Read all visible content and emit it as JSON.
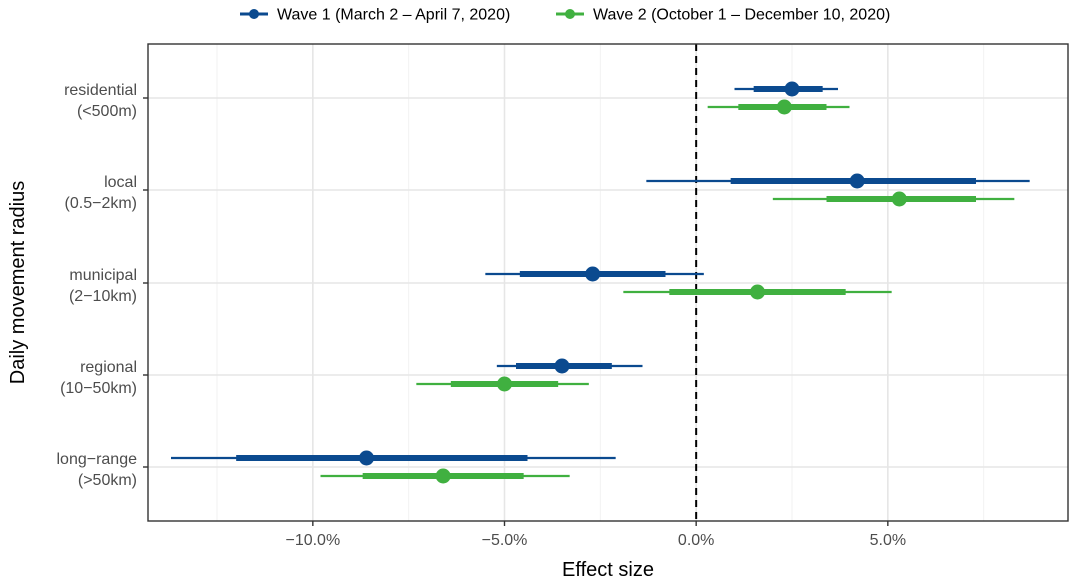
{
  "chart_data": {
    "type": "forest",
    "xlabel": "Effect size",
    "ylabel": "Daily movement radius",
    "xlim": [
      -14.3,
      9.7
    ],
    "x_ticks": [
      -10,
      -5,
      0,
      5
    ],
    "x_tick_labels": [
      "−10.0%",
      "−5.0%",
      "0.0%",
      "5.0%"
    ],
    "reference_line": 0,
    "grid": true,
    "legend_position": "top",
    "categories": [
      {
        "line1": "residential",
        "line2": "(<500m)"
      },
      {
        "line1": "local",
        "line2": "(0.5−2km)"
      },
      {
        "line1": "municipal",
        "line2": "(2−10km)"
      },
      {
        "line1": "regional",
        "line2": "(10−50km)"
      },
      {
        "line1": "long−range",
        "line2": "(>50km)"
      }
    ],
    "series": [
      {
        "name": "Wave 1 (March 2 – April 7, 2020)",
        "color": "#0b4a8f",
        "points": [
          {
            "estimate": 2.5,
            "ci50": [
              1.5,
              3.3
            ],
            "ci95": [
              1.0,
              3.7
            ]
          },
          {
            "estimate": 4.2,
            "ci50": [
              0.9,
              7.3
            ],
            "ci95": [
              -1.3,
              8.7
            ]
          },
          {
            "estimate": -2.7,
            "ci50": [
              -4.6,
              -0.8
            ],
            "ci95": [
              -5.5,
              0.2
            ]
          },
          {
            "estimate": -3.5,
            "ci50": [
              -4.7,
              -2.2
            ],
            "ci95": [
              -5.2,
              -1.4
            ]
          },
          {
            "estimate": -8.6,
            "ci50": [
              -12.0,
              -4.4
            ],
            "ci95": [
              -13.7,
              -2.1
            ]
          }
        ]
      },
      {
        "name": "Wave 2 (October 1 – December 10, 2020)",
        "color": "#40b040",
        "points": [
          {
            "estimate": 2.3,
            "ci50": [
              1.1,
              3.4
            ],
            "ci95": [
              0.3,
              4.0
            ]
          },
          {
            "estimate": 5.3,
            "ci50": [
              3.4,
              7.3
            ],
            "ci95": [
              2.0,
              8.3
            ]
          },
          {
            "estimate": 1.6,
            "ci50": [
              -0.7,
              3.9
            ],
            "ci95": [
              -1.9,
              5.1
            ]
          },
          {
            "estimate": -5.0,
            "ci50": [
              -6.4,
              -3.6
            ],
            "ci95": [
              -7.3,
              -2.8
            ]
          },
          {
            "estimate": -6.6,
            "ci50": [
              -8.7,
              -4.5
            ],
            "ci95": [
              -9.8,
              -3.3
            ]
          }
        ]
      }
    ]
  }
}
